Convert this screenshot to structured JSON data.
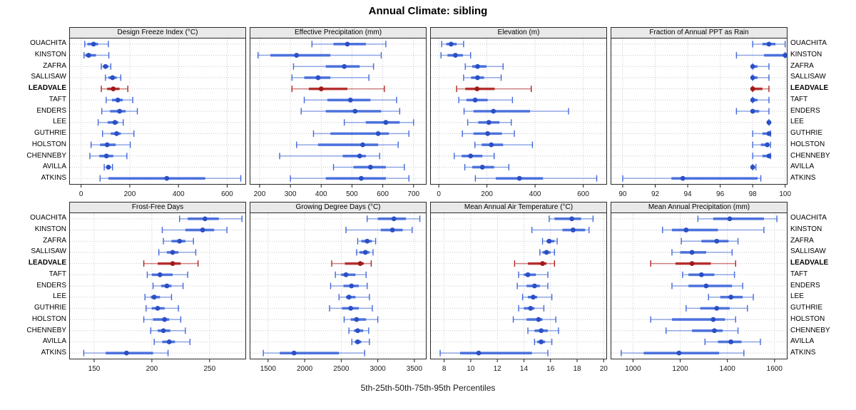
{
  "title": "Annual Climate: sibling",
  "caption": "5th-25th-50th-75th-95th Percentiles",
  "colors": {
    "normal_line": "#4169DB",
    "normal_dot": "#2B4FC4",
    "highlight_line": "#B22222",
    "highlight_dot": "#9E1A1A",
    "strip_bg": "#E9E9E9",
    "grid": "#C8C8C8",
    "panel_border": "#2a2a2a",
    "axis_text": "#1a1a1a"
  },
  "chart_data": {
    "type": "dotplot-percentile-trellis",
    "title": "Annual Climate: sibling",
    "xlabel": "5th-25th-50th-75th-95th Percentiles",
    "percentiles": [
      5,
      25,
      50,
      75,
      95
    ],
    "layout": {
      "rows": 2,
      "cols": 4,
      "grid": "dotted",
      "site_labels": "both-sides"
    },
    "sites": [
      "OUACHITA",
      "KINSTON",
      "ZAFRA",
      "SALLISAW",
      "LEADVALE",
      "TAFT",
      "ENDERS",
      "LEE",
      "GUTHRIE",
      "HOLSTON",
      "CHENNEBY",
      "AVILLA",
      "ATKINS"
    ],
    "highlight_site": "LEADVALE",
    "panels": [
      {
        "title": "Design Freeze Index (°C)",
        "xlim": [
          -46,
          675
        ],
        "ticks": [
          0,
          200,
          400,
          600
        ],
        "values": [
          [
            15,
            26,
            51,
            70,
            112
          ],
          [
            12,
            17,
            31,
            61,
            114
          ],
          [
            83,
            90,
            100,
            112,
            122
          ],
          [
            100,
            112,
            129,
            146,
            163
          ],
          [
            83,
            107,
            132,
            158,
            192
          ],
          [
            103,
            127,
            151,
            171,
            212
          ],
          [
            85,
            119,
            158,
            183,
            231
          ],
          [
            70,
            109,
            139,
            153,
            173
          ],
          [
            88,
            122,
            146,
            163,
            217
          ],
          [
            41,
            78,
            107,
            142,
            202
          ],
          [
            36,
            75,
            104,
            132,
            188
          ],
          [
            95,
            103,
            112,
            122,
            129
          ],
          [
            78,
            112,
            352,
            510,
            656
          ]
        ]
      },
      {
        "title": "Effective Precipitation (mm)",
        "xlim": [
          170,
          740
        ],
        "ticks": [
          200,
          300,
          400,
          500,
          600,
          700
        ],
        "values": [
          [
            370,
            440,
            485,
            545,
            610
          ],
          [
            195,
            235,
            320,
            430,
            595
          ],
          [
            310,
            415,
            475,
            525,
            570
          ],
          [
            305,
            345,
            390,
            430,
            555
          ],
          [
            305,
            360,
            400,
            485,
            605
          ],
          [
            345,
            420,
            495,
            560,
            645
          ],
          [
            335,
            415,
            510,
            595,
            655
          ],
          [
            475,
            545,
            610,
            655,
            700
          ],
          [
            375,
            430,
            585,
            620,
            685
          ],
          [
            320,
            390,
            535,
            585,
            650
          ],
          [
            265,
            470,
            525,
            545,
            590
          ],
          [
            440,
            505,
            560,
            610,
            670
          ],
          [
            300,
            415,
            530,
            610,
            685
          ]
        ]
      },
      {
        "title": "Elevation (m)",
        "xlim": [
          -33,
          696
        ],
        "ticks": [
          0,
          200,
          400,
          600
        ],
        "values": [
          [
            12,
            31,
            51,
            74,
            103
          ],
          [
            9,
            36,
            69,
            100,
            132
          ],
          [
            110,
            139,
            161,
            198,
            267
          ],
          [
            103,
            134,
            161,
            188,
            259
          ],
          [
            74,
            110,
            159,
            232,
            384
          ],
          [
            83,
            115,
            151,
            203,
            306
          ],
          [
            105,
            144,
            227,
            379,
            539
          ],
          [
            120,
            164,
            208,
            252,
            301
          ],
          [
            98,
            144,
            203,
            262,
            314
          ],
          [
            150,
            178,
            218,
            267,
            389
          ],
          [
            64,
            95,
            132,
            181,
            230
          ],
          [
            108,
            139,
            181,
            230,
            291
          ],
          [
            152,
            237,
            335,
            433,
            656
          ]
        ]
      },
      {
        "title": "Fraction of Annual PPT as Rain",
        "xlim": [
          89.3,
          100.1
        ],
        "ticks": [
          90,
          92,
          94,
          96,
          98,
          100
        ],
        "values": [
          [
            98,
            98.6,
            99,
            99.4,
            100
          ],
          [
            97,
            98.7,
            100,
            100,
            100
          ],
          [
            98,
            98,
            98,
            98.3,
            99
          ],
          [
            98,
            98,
            98,
            98.3,
            99
          ],
          [
            98,
            98,
            98,
            98.6,
            99
          ],
          [
            98,
            98,
            98,
            98.3,
            99
          ],
          [
            97,
            97.9,
            98,
            98.4,
            99
          ],
          [
            99,
            99,
            99,
            99,
            99
          ],
          [
            98,
            98.6,
            99,
            99,
            99.1
          ],
          [
            98,
            98.5,
            98.9,
            99,
            99.1
          ],
          [
            98,
            98.6,
            99,
            99,
            99.1
          ],
          [
            98,
            98,
            98,
            98,
            98.2
          ],
          [
            90,
            93,
            93.7,
            98.3,
            98.5
          ]
        ]
      },
      {
        "title": "Frost-Free Days",
        "xlim": [
          129,
          281
        ],
        "ticks": [
          150,
          200,
          250
        ],
        "values": [
          [
            224,
            231,
            246,
            258,
            278
          ],
          [
            209,
            229,
            244,
            254,
            265
          ],
          [
            210,
            217,
            224,
            229,
            236
          ],
          [
            206,
            213,
            218,
            223,
            238
          ],
          [
            193,
            205,
            218,
            225,
            240
          ],
          [
            196,
            200,
            207,
            218,
            231
          ],
          [
            201,
            208,
            213,
            217,
            227
          ],
          [
            194,
            199,
            202,
            207,
            217
          ],
          [
            195,
            200,
            205,
            211,
            223
          ],
          [
            193,
            201,
            211,
            215,
            225
          ],
          [
            199,
            205,
            210,
            216,
            229
          ],
          [
            202,
            209,
            215,
            220,
            233
          ],
          [
            141,
            160,
            178,
            201,
            214
          ]
        ]
      },
      {
        "title": "Growing Degree Days (°C)",
        "xlim": [
          1258,
          3657
        ],
        "ticks": [
          1500,
          2000,
          2500,
          3000,
          3500
        ],
        "values": [
          [
            2855,
            3000,
            3220,
            3385,
            3575
          ],
          [
            2565,
            3040,
            3200,
            3340,
            3470
          ],
          [
            2725,
            2775,
            2855,
            2920,
            2970
          ],
          [
            2710,
            2750,
            2830,
            2885,
            2935
          ],
          [
            2370,
            2550,
            2760,
            2810,
            2910
          ],
          [
            2420,
            2500,
            2565,
            2695,
            2840
          ],
          [
            2355,
            2530,
            2640,
            2740,
            2855
          ],
          [
            2470,
            2565,
            2605,
            2695,
            2885
          ],
          [
            2340,
            2510,
            2630,
            2740,
            2925
          ],
          [
            2540,
            2630,
            2710,
            2840,
            3000
          ],
          [
            2605,
            2675,
            2725,
            2800,
            2875
          ],
          [
            2645,
            2685,
            2725,
            2775,
            2885
          ],
          [
            1435,
            1660,
            1855,
            2470,
            2820
          ]
        ]
      },
      {
        "title": "Mean Annual Air Temperature (°C)",
        "xlim": [
          7.0,
          20.2
        ],
        "ticks": [
          8,
          10,
          12,
          14,
          16,
          18,
          20
        ],
        "values": [
          [
            15.9,
            16.3,
            17.6,
            18.3,
            19.2
          ],
          [
            14.6,
            16.9,
            17.7,
            18.6,
            18.9
          ],
          [
            15.4,
            15.7,
            15.9,
            16.3,
            16.5
          ],
          [
            15.2,
            15.4,
            15.7,
            16.0,
            16.3
          ],
          [
            13.3,
            14.3,
            15.4,
            15.7,
            16.3
          ],
          [
            13.6,
            14.0,
            14.3,
            14.9,
            15.8
          ],
          [
            13.5,
            14.2,
            14.8,
            15.2,
            15.8
          ],
          [
            13.9,
            14.3,
            14.7,
            15.0,
            16.1
          ],
          [
            13.6,
            14.0,
            14.5,
            14.8,
            15.5
          ],
          [
            13.2,
            14.2,
            15.1,
            15.4,
            16.4
          ],
          [
            14.3,
            14.8,
            15.3,
            15.8,
            16.6
          ],
          [
            14.8,
            15.0,
            15.3,
            15.6,
            16.1
          ],
          [
            7.7,
            9.2,
            10.6,
            14.6,
            15.8
          ]
        ]
      },
      {
        "title": "Mean Annual Precipitation (mm)",
        "xlim": [
          908,
          1652
        ],
        "ticks": [
          1000,
          1200,
          1400,
          1600
        ],
        "values": [
          [
            1275,
            1340,
            1410,
            1555,
            1610
          ],
          [
            1125,
            1165,
            1225,
            1360,
            1555
          ],
          [
            1205,
            1290,
            1355,
            1405,
            1445
          ],
          [
            1165,
            1200,
            1250,
            1310,
            1420
          ],
          [
            1075,
            1180,
            1250,
            1330,
            1435
          ],
          [
            1210,
            1235,
            1290,
            1345,
            1430
          ],
          [
            1165,
            1235,
            1310,
            1420,
            1465
          ],
          [
            1320,
            1370,
            1415,
            1465,
            1510
          ],
          [
            1225,
            1285,
            1355,
            1410,
            1485
          ],
          [
            1075,
            1165,
            1340,
            1390,
            1435
          ],
          [
            1140,
            1250,
            1345,
            1380,
            1445
          ],
          [
            1305,
            1360,
            1415,
            1460,
            1540
          ],
          [
            950,
            1045,
            1195,
            1365,
            1470
          ]
        ]
      }
    ]
  }
}
